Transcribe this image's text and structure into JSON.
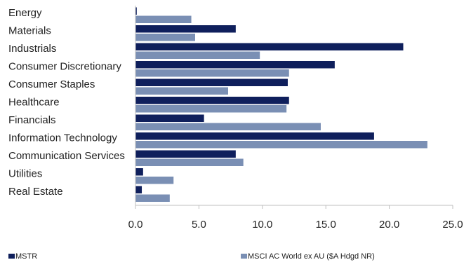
{
  "chart_data": {
    "type": "bar",
    "orientation": "horizontal",
    "categories": [
      "Energy",
      "Materials",
      "Industrials",
      "Consumer Discretionary",
      "Consumer Staples",
      "Healthcare",
      "Financials",
      "Information Technology",
      "Communication Services",
      "Utilities",
      "Real Estate"
    ],
    "series": [
      {
        "name": "MSTR",
        "color": "#0f1f5c",
        "values": [
          0.1,
          7.9,
          21.1,
          15.7,
          12.0,
          12.1,
          5.4,
          18.8,
          7.9,
          0.6,
          0.5
        ]
      },
      {
        "name": "MSCI AC World ex AU ($A Hdgd NR)",
        "color": "#7a8fb4",
        "values": [
          4.4,
          4.7,
          9.8,
          12.1,
          7.3,
          11.9,
          14.6,
          23.0,
          8.5,
          3.0,
          2.7
        ]
      }
    ],
    "xlim": [
      0,
      25
    ],
    "xticks": [
      "0.0",
      "5.0",
      "10.0",
      "15.0",
      "20.0",
      "25.0"
    ],
    "grid": false,
    "legend_position": "bottom"
  }
}
